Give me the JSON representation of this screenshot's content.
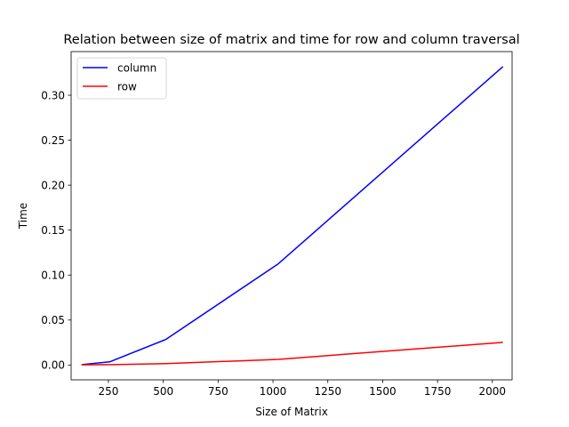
{
  "chart_data": {
    "type": "line",
    "title": "Relation between size of matrix and time for row and column traversal",
    "xlabel": "Size of Matrix",
    "ylabel": "Time",
    "xlim": [
      80,
      2090
    ],
    "ylim": [
      -0.0165,
      0.3485
    ],
    "x": [
      128,
      256,
      512,
      1024,
      2048
    ],
    "xticks": [
      250,
      500,
      750,
      1000,
      1250,
      1500,
      1750,
      2000
    ],
    "xtick_labels": [
      "250",
      "500",
      "750",
      "1000",
      "1250",
      "1500",
      "1750",
      "2000"
    ],
    "yticks": [
      0.0,
      0.05,
      0.1,
      0.15,
      0.2,
      0.25,
      0.3
    ],
    "ytick_labels": [
      "0.00",
      "0.05",
      "0.10",
      "0.15",
      "0.20",
      "0.25",
      "0.30"
    ],
    "grid": false,
    "legend_position": "upper-left",
    "series": [
      {
        "name": "column",
        "color": "#0000ff",
        "values": [
          0.0005,
          0.0035,
          0.0285,
          0.1125,
          0.3318
        ]
      },
      {
        "name": "row",
        "color": "#ff0000",
        "values": [
          0.0002,
          0.0004,
          0.0015,
          0.0063,
          0.0252
        ]
      }
    ]
  }
}
